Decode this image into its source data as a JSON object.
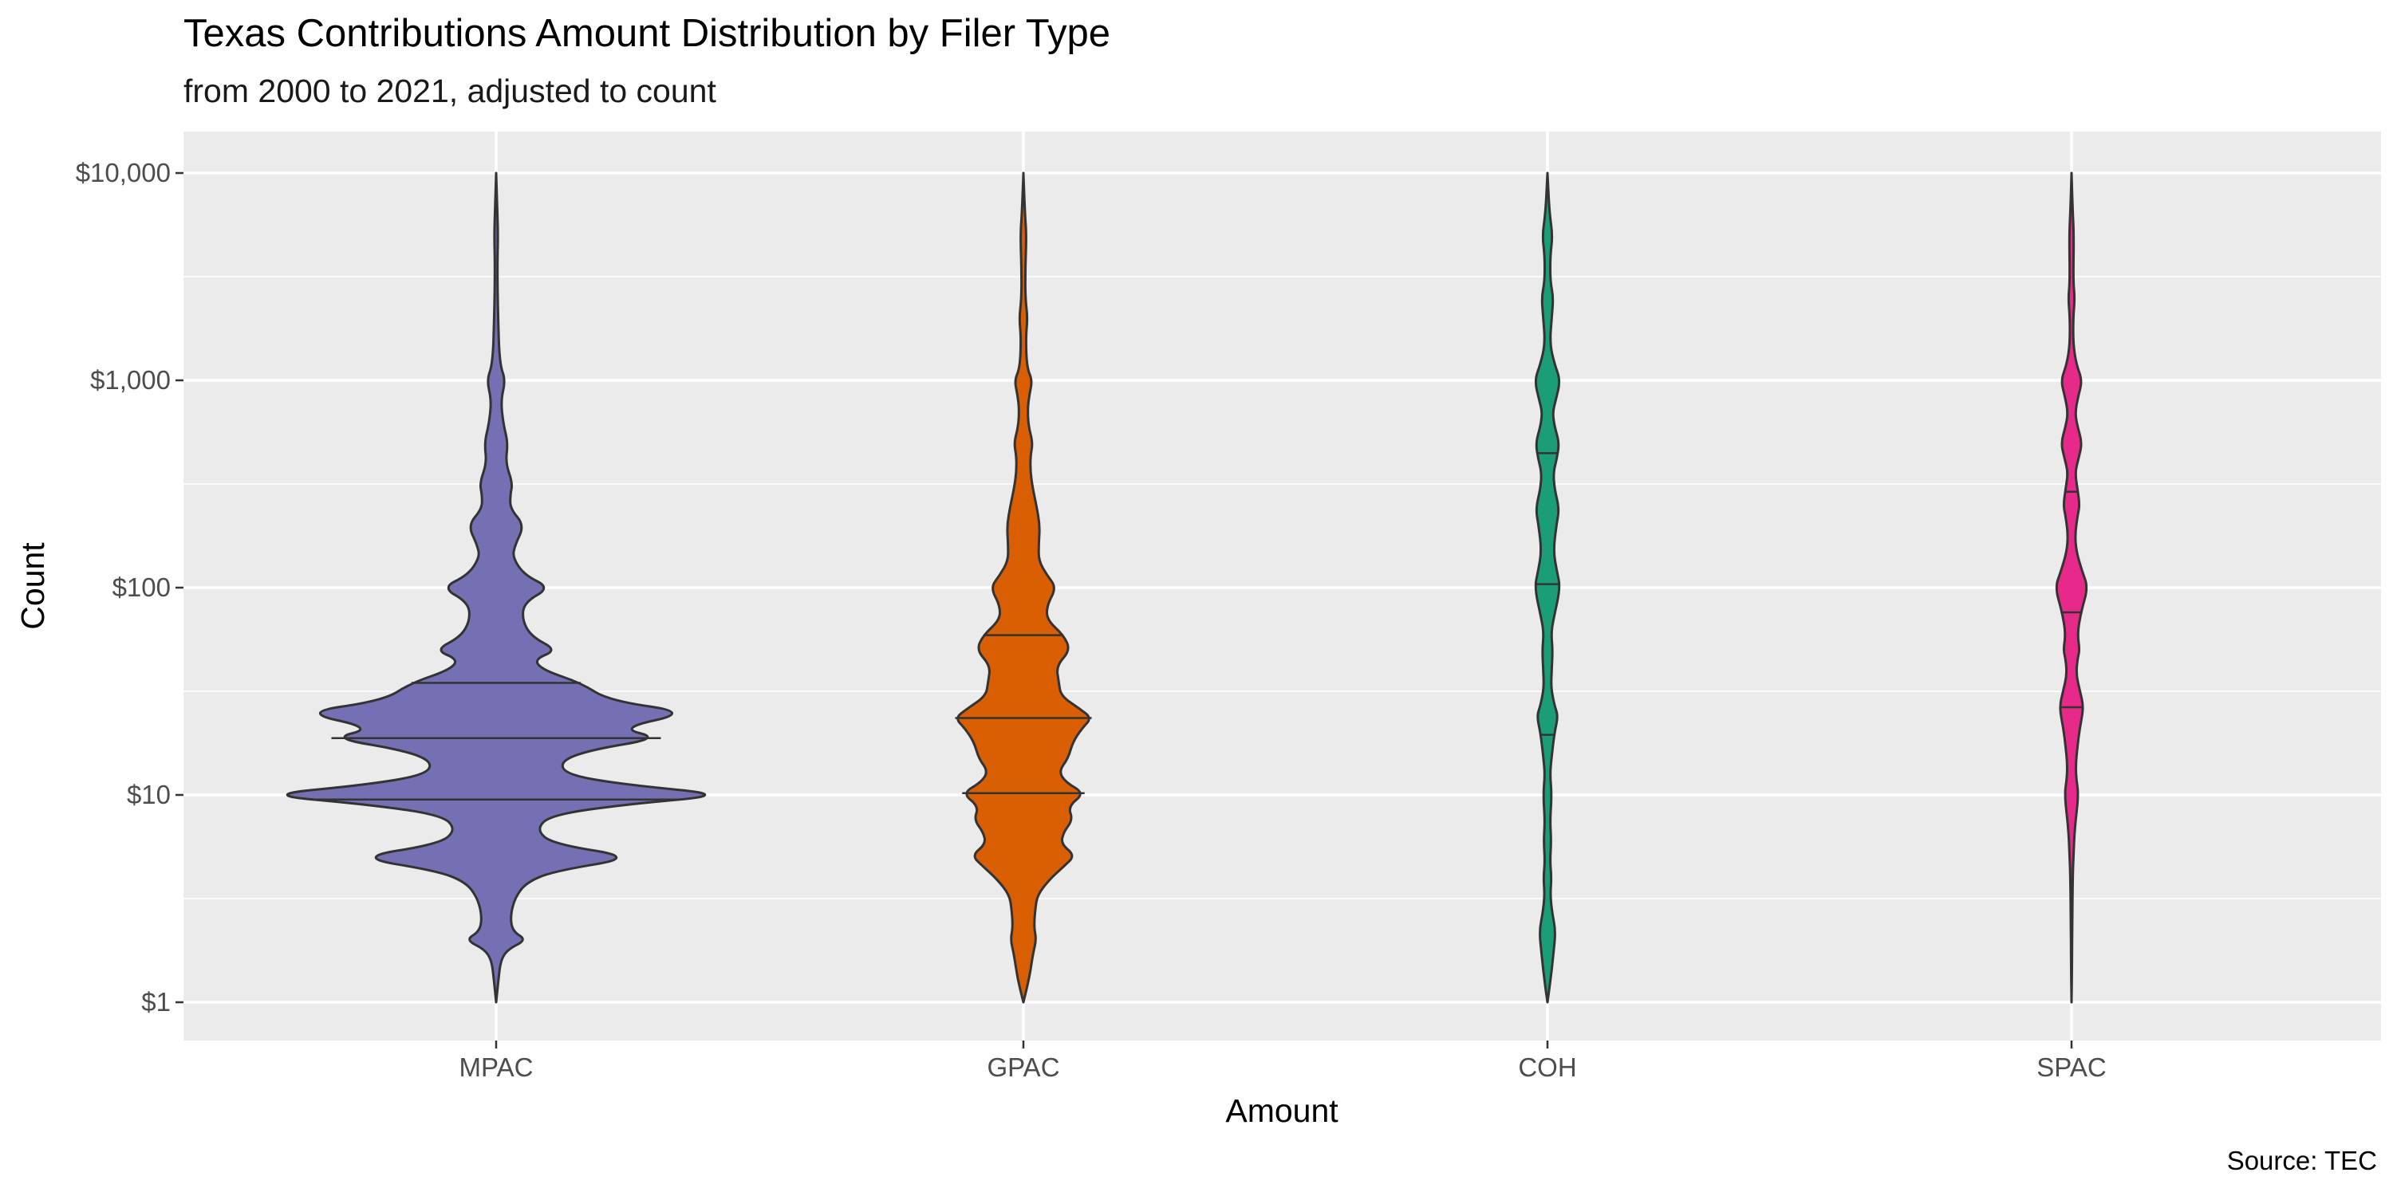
{
  "chart_data": {
    "type": "violin",
    "title": "Texas Contributions Amount Distribution by Filer Type",
    "subtitle": "from 2000 to 2021, adjusted to count",
    "xlabel": "Amount",
    "ylabel": "Count",
    "caption": "Source: TEC",
    "y_scale": "log10",
    "ylim": [
      1,
      10000
    ],
    "y_ticks": [
      {
        "value": 1,
        "label": "$1"
      },
      {
        "value": 10,
        "label": "$10"
      },
      {
        "value": 100,
        "label": "$100"
      },
      {
        "value": 1000,
        "label": "$1,000"
      },
      {
        "value": 10000,
        "label": "$10,000"
      }
    ],
    "grid": true,
    "legend": "none",
    "series": [
      {
        "category": "MPAC",
        "color": "#7570b3",
        "quantiles": [
          9.5,
          18.8,
          34.7
        ],
        "profile": [
          [
            1.0,
            0.0
          ],
          [
            1.3,
            0.01
          ],
          [
            1.6,
            0.02
          ],
          [
            1.8,
            0.05
          ],
          [
            2.0,
            0.13
          ],
          [
            2.2,
            0.07
          ],
          [
            2.6,
            0.06
          ],
          [
            3.2,
            0.08
          ],
          [
            3.8,
            0.13
          ],
          [
            4.3,
            0.25
          ],
          [
            5.0,
            0.6
          ],
          [
            5.8,
            0.24
          ],
          [
            6.8,
            0.17
          ],
          [
            8.0,
            0.23
          ],
          [
            9.0,
            0.55
          ],
          [
            10.0,
            1.0
          ],
          [
            11.2,
            0.55
          ],
          [
            12.5,
            0.3
          ],
          [
            14.5,
            0.27
          ],
          [
            16.5,
            0.4
          ],
          [
            18.8,
            0.7
          ],
          [
            21.0,
            0.52
          ],
          [
            25.0,
            0.83
          ],
          [
            28.5,
            0.48
          ],
          [
            34.7,
            0.36
          ],
          [
            40.0,
            0.2
          ],
          [
            45.0,
            0.16
          ],
          [
            50.0,
            0.26
          ],
          [
            58.0,
            0.15
          ],
          [
            70.0,
            0.11
          ],
          [
            85.0,
            0.12
          ],
          [
            100.0,
            0.23
          ],
          [
            115.0,
            0.12
          ],
          [
            140.0,
            0.07
          ],
          [
            160.0,
            0.08
          ],
          [
            200.0,
            0.12
          ],
          [
            240.0,
            0.06
          ],
          [
            280.0,
            0.06
          ],
          [
            320.0,
            0.07
          ],
          [
            400.0,
            0.04
          ],
          [
            500.0,
            0.05
          ],
          [
            620.0,
            0.03
          ],
          [
            800.0,
            0.02
          ],
          [
            1000.0,
            0.04
          ],
          [
            1200.0,
            0.015
          ],
          [
            2000.0,
            0.008
          ],
          [
            3500.0,
            0.005
          ],
          [
            5000.0,
            0.008
          ],
          [
            7000.0,
            0.004
          ],
          [
            10000.0,
            0.0
          ]
        ]
      },
      {
        "category": "GPAC",
        "color": "#d95f02",
        "quantiles": [
          10.2,
          23.5,
          59.0
        ],
        "profile": [
          [
            1.0,
            0.0
          ],
          [
            1.3,
            0.025
          ],
          [
            1.7,
            0.04
          ],
          [
            2.0,
            0.055
          ],
          [
            2.3,
            0.045
          ],
          [
            2.8,
            0.05
          ],
          [
            3.3,
            0.06
          ],
          [
            3.9,
            0.11
          ],
          [
            4.5,
            0.17
          ],
          [
            5.1,
            0.22
          ],
          [
            5.8,
            0.16
          ],
          [
            6.6,
            0.17
          ],
          [
            7.6,
            0.21
          ],
          [
            8.8,
            0.19
          ],
          [
            10.2,
            0.26
          ],
          [
            11.5,
            0.18
          ],
          [
            13.0,
            0.15
          ],
          [
            15.0,
            0.19
          ],
          [
            18.0,
            0.21
          ],
          [
            21.0,
            0.25
          ],
          [
            23.5,
            0.29
          ],
          [
            26.0,
            0.24
          ],
          [
            30.0,
            0.16
          ],
          [
            35.0,
            0.15
          ],
          [
            42.0,
            0.14
          ],
          [
            50.0,
            0.2
          ],
          [
            59.0,
            0.17
          ],
          [
            70.0,
            0.1
          ],
          [
            82.0,
            0.1
          ],
          [
            100.0,
            0.14
          ],
          [
            115.0,
            0.1
          ],
          [
            135.0,
            0.065
          ],
          [
            160.0,
            0.065
          ],
          [
            200.0,
            0.07
          ],
          [
            250.0,
            0.055
          ],
          [
            300.0,
            0.04
          ],
          [
            360.0,
            0.03
          ],
          [
            430.0,
            0.03
          ],
          [
            500.0,
            0.04
          ],
          [
            600.0,
            0.022
          ],
          [
            720.0,
            0.018
          ],
          [
            850.0,
            0.025
          ],
          [
            1000.0,
            0.038
          ],
          [
            1150.0,
            0.015
          ],
          [
            1600.0,
            0.01
          ],
          [
            2000.0,
            0.018
          ],
          [
            2500.0,
            0.008
          ],
          [
            3500.0,
            0.008
          ],
          [
            5000.0,
            0.013
          ],
          [
            6500.0,
            0.006
          ],
          [
            10000.0,
            0.0
          ]
        ]
      },
      {
        "category": "COH",
        "color": "#1b9e77",
        "quantiles": [
          19.5,
          104.0,
          445.0
        ],
        "profile": [
          [
            1.0,
            0.0
          ],
          [
            1.25,
            0.012
          ],
          [
            1.7,
            0.025
          ],
          [
            2.2,
            0.035
          ],
          [
            2.7,
            0.02
          ],
          [
            3.3,
            0.012
          ],
          [
            4.0,
            0.017
          ],
          [
            4.8,
            0.011
          ],
          [
            6.0,
            0.016
          ],
          [
            7.5,
            0.011
          ],
          [
            10.0,
            0.018
          ],
          [
            12.5,
            0.011
          ],
          [
            15.0,
            0.017
          ],
          [
            20.0,
            0.03
          ],
          [
            24.0,
            0.045
          ],
          [
            27.0,
            0.03
          ],
          [
            33.0,
            0.015
          ],
          [
            40.0,
            0.018
          ],
          [
            50.0,
            0.022
          ],
          [
            60.0,
            0.016
          ],
          [
            70.0,
            0.025
          ],
          [
            100.0,
            0.055
          ],
          [
            120.0,
            0.04
          ],
          [
            150.0,
            0.025
          ],
          [
            200.0,
            0.038
          ],
          [
            240.0,
            0.05
          ],
          [
            300.0,
            0.03
          ],
          [
            360.0,
            0.025
          ],
          [
            420.0,
            0.04
          ],
          [
            500.0,
            0.05
          ],
          [
            600.0,
            0.03
          ],
          [
            700.0,
            0.022
          ],
          [
            800.0,
            0.035
          ],
          [
            1000.0,
            0.055
          ],
          [
            1200.0,
            0.03
          ],
          [
            1500.0,
            0.01
          ],
          [
            2000.0,
            0.018
          ],
          [
            2500.0,
            0.025
          ],
          [
            3000.0,
            0.012
          ],
          [
            4000.0,
            0.012
          ],
          [
            5000.0,
            0.022
          ],
          [
            6500.0,
            0.008
          ],
          [
            10000.0,
            0.0
          ]
        ]
      },
      {
        "category": "SPAC",
        "color": "#e7298a",
        "quantiles": [
          26.5,
          76.0,
          290.0
        ],
        "profile": [
          [
            1.0,
            0.0
          ],
          [
            1.5,
            0.002
          ],
          [
            2.5,
            0.003
          ],
          [
            4.0,
            0.005
          ],
          [
            5.0,
            0.008
          ],
          [
            7.0,
            0.014
          ],
          [
            10.0,
            0.03
          ],
          [
            12.0,
            0.02
          ],
          [
            14.0,
            0.018
          ],
          [
            17.0,
            0.025
          ],
          [
            21.0,
            0.035
          ],
          [
            26.5,
            0.052
          ],
          [
            32.0,
            0.035
          ],
          [
            38.0,
            0.02
          ],
          [
            45.0,
            0.025
          ],
          [
            50.0,
            0.035
          ],
          [
            60.0,
            0.025
          ],
          [
            76.0,
            0.04
          ],
          [
            100.0,
            0.07
          ],
          [
            120.0,
            0.045
          ],
          [
            150.0,
            0.02
          ],
          [
            180.0,
            0.015
          ],
          [
            220.0,
            0.025
          ],
          [
            250.0,
            0.035
          ],
          [
            300.0,
            0.025
          ],
          [
            360.0,
            0.015
          ],
          [
            420.0,
            0.03
          ],
          [
            500.0,
            0.045
          ],
          [
            600.0,
            0.025
          ],
          [
            700.0,
            0.015
          ],
          [
            850.0,
            0.03
          ],
          [
            1000.0,
            0.045
          ],
          [
            1200.0,
            0.02
          ],
          [
            1500.0,
            0.007
          ],
          [
            2000.0,
            0.007
          ],
          [
            2500.0,
            0.014
          ],
          [
            3000.0,
            0.007
          ],
          [
            5000.0,
            0.01
          ],
          [
            6500.0,
            0.005
          ],
          [
            10000.0,
            0.0
          ]
        ]
      }
    ]
  }
}
